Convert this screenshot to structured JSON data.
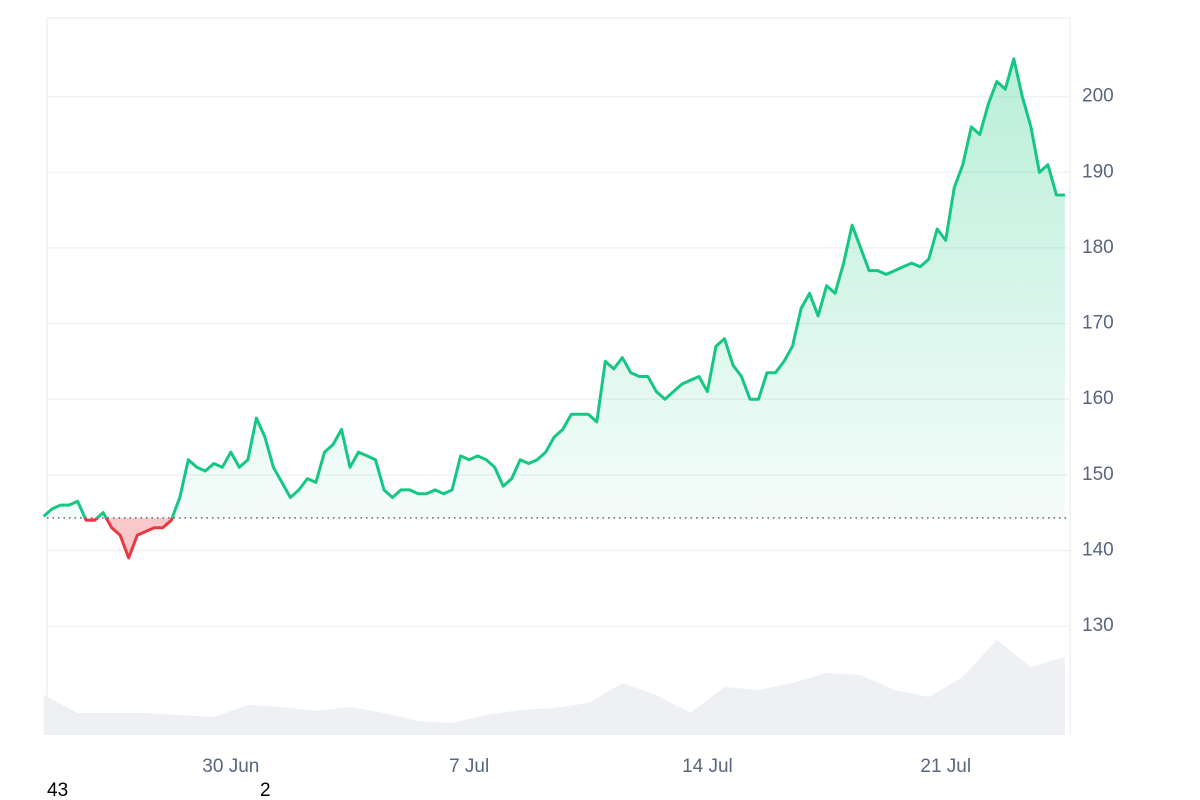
{
  "chart_data": {
    "type": "line",
    "x": [
      175.5,
      175.75,
      176,
      176.25,
      176.5,
      176.75,
      177,
      177.25,
      177.5,
      177.75,
      178,
      178.25,
      178.5,
      178.75,
      179,
      179.25,
      179.5,
      179.75,
      180,
      180.25,
      180.5,
      180.75,
      181,
      181.25,
      181.5,
      181.75,
      182,
      182.25,
      182.5,
      182.75,
      183,
      183.25,
      183.5,
      183.75,
      184,
      184.25,
      184.5,
      184.75,
      185,
      185.25,
      185.5,
      185.75,
      186,
      186.25,
      186.5,
      186.75,
      187,
      187.25,
      187.5,
      187.75,
      188,
      188.25,
      188.5,
      188.75,
      189,
      189.25,
      189.5,
      189.75,
      190,
      190.25,
      190.5,
      190.75,
      191,
      191.25,
      191.5,
      191.75,
      192,
      192.25,
      192.5,
      192.75,
      193,
      193.25,
      193.5,
      193.75,
      194,
      194.25,
      194.5,
      194.75,
      195,
      195.25,
      195.5,
      195.75,
      196,
      196.25,
      196.5,
      196.75,
      197,
      197.25,
      197.5,
      197.75,
      198,
      198.25,
      198.5,
      198.75,
      199,
      199.25,
      199.5,
      199.75,
      200,
      200.25,
      200.5,
      200.75,
      201,
      201.25,
      201.5,
      201.75,
      202,
      202.25,
      202.5,
      202.75,
      203,
      203.25,
      203.5,
      203.75,
      204,
      204.25,
      204.5,
      204.75,
      205,
      205.25,
      205.5
    ],
    "series": [
      {
        "color": "#16c784",
        "below_color": "#ea3943",
        "values": [
          144.5,
          145.5,
          146,
          146,
          146.5,
          144,
          144,
          145,
          143,
          142,
          139,
          142,
          142.5,
          143,
          143,
          144,
          147,
          152,
          151,
          150.5,
          151.5,
          151,
          153,
          151,
          152,
          157.5,
          155,
          151,
          149,
          147,
          148,
          149.5,
          149,
          153,
          154,
          156,
          151,
          153,
          152.5,
          152,
          148,
          147,
          148,
          148,
          147.5,
          147.5,
          148,
          147.5,
          148,
          152.5,
          152,
          152.5,
          152,
          151,
          148.5,
          149.5,
          152,
          151.5,
          152,
          153,
          155,
          156,
          158,
          158,
          158,
          157,
          165,
          164,
          165.5,
          163.5,
          163,
          163,
          161,
          160,
          161,
          162,
          162.5,
          163,
          161,
          167,
          168,
          164.5,
          163,
          160,
          160,
          163.5,
          163.5,
          165,
          167,
          172,
          174,
          171,
          175,
          174,
          178,
          183,
          180,
          177,
          177,
          176.5,
          177,
          177.5,
          178,
          177.5,
          178.5,
          182.5,
          181,
          188,
          191,
          196,
          195,
          199,
          202,
          201,
          205,
          200,
          196,
          190,
          191,
          187,
          187
        ]
      }
    ],
    "baseline": 144.3,
    "volume": {
      "color": "#eef0f3",
      "x": [
        175.5,
        176.5,
        177.5,
        178.5,
        179.5,
        180.5,
        181.5,
        182.5,
        183.5,
        184.5,
        185.5,
        186.5,
        187.5,
        188.5,
        189.5,
        190.5,
        191.5,
        192.5,
        193.5,
        194.5,
        195.5,
        196.5,
        197.5,
        198.5,
        199.5,
        200.5,
        201.5,
        202.5,
        203.5,
        204.5,
        205.5
      ],
      "values": [
        40,
        22,
        22,
        22,
        20,
        18,
        30,
        28,
        24,
        28,
        22,
        14,
        12,
        20,
        25,
        27,
        32,
        52,
        40,
        22,
        48,
        45,
        52,
        62,
        60,
        45,
        38,
        58,
        95,
        68,
        78
      ],
      "axis": "y2"
    },
    "y2lim": [
      0,
      100
    ],
    "xlim": [
      175.6,
      205.65
    ],
    "xticks": [
      {
        "value": 181,
        "label": "30 Jun"
      },
      {
        "value": 188,
        "label": "7 Jul"
      },
      {
        "value": 195,
        "label": "14 Jul"
      },
      {
        "value": 202,
        "label": "21 Jul"
      }
    ],
    "ylim": [
      115.6,
      210.4
    ],
    "yticks": [
      130,
      140,
      150,
      160,
      170,
      180,
      190,
      200
    ],
    "grid": true,
    "annotations": [
      "43",
      "2"
    ]
  }
}
